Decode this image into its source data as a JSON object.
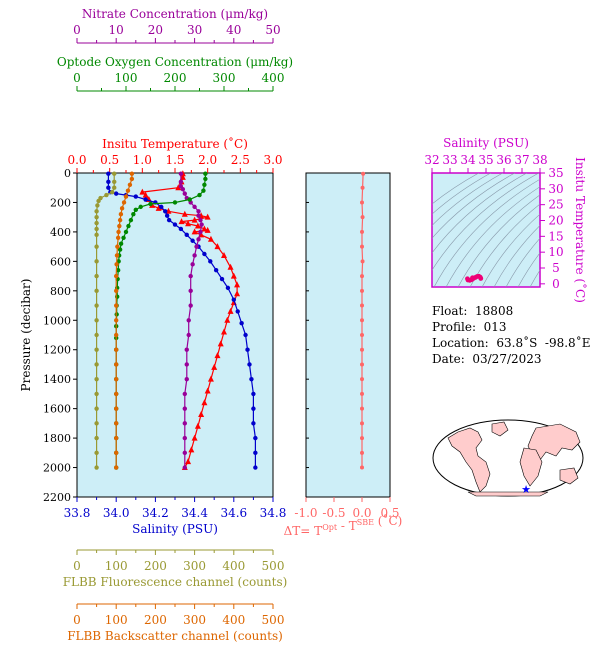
{
  "info": {
    "float": "Float:  18808",
    "profile": "Profile:  013",
    "location": "Location:  63.8˚S  -98.8˚E",
    "date": "Date:  03/27/2023"
  },
  "colors": {
    "background": "#cdeef7",
    "temperature": "#ff0000",
    "salinity": "#0000cc",
    "nitrate": "#990099",
    "oxygen": "#008800",
    "fluorescence": "#999933",
    "backscatter": "#dd6600",
    "delta_t": "#ff6666",
    "ts_points": "#ee0077",
    "ts_axis": "#cc00cc",
    "map_land": "#ffcccc",
    "marker": "#0000ff"
  },
  "chart_data": [
    {
      "type": "line",
      "name": "profiles",
      "ylabel": "Pressure (decibar)",
      "ylim": [
        2200,
        0
      ],
      "yticks": [
        0,
        200,
        400,
        600,
        800,
        1000,
        1200,
        1400,
        1600,
        1800,
        2000,
        2200
      ],
      "axes": [
        {
          "key": "temperature",
          "label": "Insitu Temperature (˚C)",
          "position": "top",
          "range": [
            0.0,
            3.0
          ],
          "ticks": [
            "0.0",
            "0.5",
            "1.0",
            "1.5",
            "2.0",
            "2.5",
            "3.0"
          ]
        },
        {
          "key": "salinity",
          "label": "Salinity (PSU)",
          "position": "bottom",
          "range": [
            33.8,
            34.8
          ],
          "ticks": [
            "33.8",
            "34.0",
            "34.2",
            "34.4",
            "34.6",
            "34.8"
          ]
        },
        {
          "key": "nitrate",
          "label": "Nitrate Concentration (μm/kg)",
          "position": "top-3",
          "range": [
            0,
            50
          ],
          "ticks": [
            "0",
            "10",
            "20",
            "30",
            "40",
            "50"
          ]
        },
        {
          "key": "oxygen",
          "label": "Optode Oxygen Concentration (μm/kg)",
          "position": "top-2",
          "range": [
            0,
            400
          ],
          "ticks": [
            "0",
            "100",
            "200",
            "300",
            "400"
          ]
        },
        {
          "key": "fluorescence",
          "label": "FLBB Fluorescence channel (counts)",
          "position": "bottom-2",
          "range": [
            0,
            500
          ],
          "ticks": [
            "0",
            "100",
            "200",
            "300",
            "400",
            "500"
          ]
        },
        {
          "key": "backscatter",
          "label": "FLBB Backscatter channel (counts)",
          "position": "bottom-3",
          "range": [
            0,
            500
          ],
          "ticks": [
            "0",
            "100",
            "200",
            "300",
            "400",
            "500"
          ]
        }
      ],
      "series": [
        {
          "key": "temperature",
          "marker": "triangle",
          "points": [
            [
              1.62,
              5
            ],
            [
              1.62,
              30
            ],
            [
              1.6,
              60
            ],
            [
              1.55,
              100
            ],
            [
              1.0,
              130
            ],
            [
              1.05,
              150
            ],
            [
              1.1,
              180
            ],
            [
              1.15,
              220
            ],
            [
              1.25,
              240
            ],
            [
              1.4,
              260
            ],
            [
              1.65,
              280
            ],
            [
              1.9,
              290
            ],
            [
              2.0,
              300
            ],
            [
              1.8,
              320
            ],
            [
              1.6,
              330
            ],
            [
              1.7,
              345
            ],
            [
              1.85,
              360
            ],
            [
              1.95,
              380
            ],
            [
              2.0,
              390
            ],
            [
              1.8,
              400
            ],
            [
              1.9,
              420
            ],
            [
              2.05,
              450
            ],
            [
              2.15,
              500
            ],
            [
              2.25,
              560
            ],
            [
              2.35,
              640
            ],
            [
              2.4,
              700
            ],
            [
              2.45,
              760
            ],
            [
              2.45,
              820
            ],
            [
              2.4,
              880
            ],
            [
              2.35,
              940
            ],
            [
              2.3,
              1000
            ],
            [
              2.25,
              1080
            ],
            [
              2.2,
              1160
            ],
            [
              2.15,
              1240
            ],
            [
              2.1,
              1320
            ],
            [
              2.05,
              1400
            ],
            [
              2.0,
              1480
            ],
            [
              1.95,
              1560
            ],
            [
              1.9,
              1640
            ],
            [
              1.85,
              1720
            ],
            [
              1.8,
              1800
            ],
            [
              1.75,
              1880
            ],
            [
              1.7,
              1960
            ],
            [
              1.65,
              2000
            ]
          ]
        },
        {
          "key": "salinity",
          "marker": "circle",
          "points": [
            [
              33.96,
              5
            ],
            [
              33.96,
              60
            ],
            [
              33.96,
              100
            ],
            [
              33.97,
              130
            ],
            [
              34.0,
              140
            ],
            [
              34.05,
              150
            ],
            [
              34.1,
              160
            ],
            [
              34.15,
              180
            ],
            [
              34.2,
              200
            ],
            [
              34.23,
              230
            ],
            [
              34.25,
              260
            ],
            [
              34.26,
              290
            ],
            [
              34.27,
              320
            ],
            [
              34.3,
              350
            ],
            [
              34.33,
              380
            ],
            [
              34.36,
              420
            ],
            [
              34.39,
              460
            ],
            [
              34.42,
              500
            ],
            [
              34.45,
              550
            ],
            [
              34.48,
              600
            ],
            [
              34.51,
              660
            ],
            [
              34.54,
              720
            ],
            [
              34.57,
              780
            ],
            [
              34.6,
              860
            ],
            [
              34.62,
              940
            ],
            [
              34.64,
              1020
            ],
            [
              34.66,
              1100
            ],
            [
              34.67,
              1200
            ],
            [
              34.68,
              1300
            ],
            [
              34.69,
              1400
            ],
            [
              34.7,
              1500
            ],
            [
              34.7,
              1600
            ],
            [
              34.7,
              1700
            ],
            [
              34.71,
              1800
            ],
            [
              34.71,
              1900
            ],
            [
              34.71,
              2000
            ]
          ]
        },
        {
          "key": "nitrate",
          "marker": "circle",
          "points": [
            [
              26.5,
              5
            ],
            [
              26.5,
              60
            ],
            [
              26.5,
              90
            ],
            [
              27.0,
              110
            ],
            [
              27.5,
              140
            ],
            [
              28,
              170
            ],
            [
              29,
              200
            ],
            [
              30,
              230
            ],
            [
              31,
              260
            ],
            [
              31,
              290
            ],
            [
              31.5,
              320
            ],
            [
              31.8,
              350
            ],
            [
              31.5,
              400
            ],
            [
              31,
              450
            ],
            [
              30.5,
              500
            ],
            [
              30,
              560
            ],
            [
              29.5,
              620
            ],
            [
              29,
              700
            ],
            [
              29,
              800
            ],
            [
              29,
              900
            ],
            [
              28.5,
              1000
            ],
            [
              28.5,
              1100
            ],
            [
              28,
              1200
            ],
            [
              28,
              1300
            ],
            [
              28,
              1400
            ],
            [
              27.5,
              1500
            ],
            [
              27.5,
              1600
            ],
            [
              27.5,
              1700
            ],
            [
              27.5,
              1800
            ],
            [
              27.5,
              1900
            ],
            [
              27.5,
              2000
            ]
          ]
        },
        {
          "key": "oxygen",
          "marker": "circle",
          "points": [
            [
              262,
              5
            ],
            [
              262,
              40
            ],
            [
              260,
              80
            ],
            [
              258,
              120
            ],
            [
              250,
              150
            ],
            [
              230,
              180
            ],
            [
              200,
              200
            ],
            [
              150,
              210
            ],
            [
              130,
              230
            ],
            [
              120,
              250
            ],
            [
              115,
              280
            ],
            [
              110,
              320
            ],
            [
              105,
              360
            ],
            [
              100,
              400
            ],
            [
              95,
              440
            ],
            [
              90,
              480
            ],
            [
              88,
              520
            ],
            [
              86,
              560
            ],
            [
              85,
              600
            ],
            [
              84,
              660
            ],
            [
              83,
              720
            ],
            [
              82,
              780
            ],
            [
              82,
              840
            ],
            [
              81,
              900
            ],
            [
              81,
              960
            ],
            [
              80,
              1040
            ],
            [
              80,
              1120
            ],
            [
              80,
              1200
            ],
            [
              80,
              1300
            ],
            [
              80,
              1400
            ],
            [
              80,
              1500
            ],
            [
              80,
              1600
            ],
            [
              80,
              1700
            ],
            [
              80,
              1800
            ],
            [
              80,
              1900
            ],
            [
              80,
              2000
            ]
          ]
        },
        {
          "key": "fluorescence",
          "marker": "circle",
          "points": [
            [
              95,
              5
            ],
            [
              95,
              60
            ],
            [
              95,
              100
            ],
            [
              90,
              130
            ],
            [
              75,
              150
            ],
            [
              60,
              170
            ],
            [
              55,
              190
            ],
            [
              52,
              220
            ],
            [
              50,
              260
            ],
            [
              50,
              300
            ],
            [
              50,
              340
            ],
            [
              50,
              380
            ],
            [
              50,
              420
            ],
            [
              50,
              500
            ],
            [
              50,
              600
            ],
            [
              50,
              700
            ],
            [
              50,
              800
            ],
            [
              50,
              900
            ],
            [
              50,
              1000
            ],
            [
              50,
              1100
            ],
            [
              50,
              1200
            ],
            [
              50,
              1300
            ],
            [
              50,
              1400
            ],
            [
              50,
              1500
            ],
            [
              50,
              1600
            ],
            [
              50,
              1700
            ],
            [
              50,
              1800
            ],
            [
              50,
              1900
            ],
            [
              50,
              2000
            ]
          ]
        },
        {
          "key": "backscatter",
          "marker": "circle",
          "points": [
            [
              140,
              5
            ],
            [
              140,
              40
            ],
            [
              135,
              80
            ],
            [
              130,
              120
            ],
            [
              125,
              160
            ],
            [
              120,
              200
            ],
            [
              115,
              240
            ],
            [
              112,
              280
            ],
            [
              110,
              320
            ],
            [
              108,
              360
            ],
            [
              106,
              400
            ],
            [
              105,
              440
            ],
            [
              103,
              500
            ],
            [
              102,
              560
            ],
            [
              101,
              620
            ],
            [
              100,
              700
            ],
            [
              100,
              800
            ],
            [
              100,
              900
            ],
            [
              100,
              1000
            ],
            [
              100,
              1100
            ],
            [
              100,
              1200
            ],
            [
              100,
              1300
            ],
            [
              100,
              1400
            ],
            [
              100,
              1500
            ],
            [
              100,
              1600
            ],
            [
              100,
              1700
            ],
            [
              100,
              1800
            ],
            [
              100,
              1900
            ],
            [
              100,
              2000
            ]
          ]
        }
      ]
    },
    {
      "type": "line",
      "name": "delta-t",
      "xlabel": "ΔT= T",
      "xlabel_sup1": "Opt",
      "xlabel_mid": " - T",
      "xlabel_sup2": "SBE",
      "xlabel_end": " (˚C)",
      "xlim": [
        -1.0,
        0.5
      ],
      "xticks": [
        "-1.0",
        "-0.5",
        "0.0",
        "0.5"
      ],
      "ylim": [
        2200,
        0
      ],
      "points": [
        [
          0.02,
          5
        ],
        [
          0.01,
          100
        ],
        [
          0.0,
          200
        ],
        [
          0.01,
          300
        ],
        [
          0.0,
          400
        ],
        [
          0.0,
          500
        ],
        [
          0.01,
          600
        ],
        [
          0.0,
          700
        ],
        [
          0.0,
          800
        ],
        [
          0.0,
          900
        ],
        [
          0.0,
          1000
        ],
        [
          0.0,
          1100
        ],
        [
          0.0,
          1200
        ],
        [
          0.0,
          1300
        ],
        [
          0.0,
          1400
        ],
        [
          0.0,
          1500
        ],
        [
          0.0,
          1600
        ],
        [
          0.0,
          1700
        ],
        [
          0.0,
          1800
        ],
        [
          0.0,
          1900
        ],
        [
          0.0,
          2000
        ]
      ]
    },
    {
      "type": "scatter",
      "name": "t-s",
      "xlabel": "Salinity (PSU)",
      "ylabel": "Insitu Temperature (˚C)",
      "xlim": [
        32,
        38
      ],
      "ylim": [
        -1,
        35
      ],
      "xticks": [
        "32",
        "33",
        "34",
        "35",
        "36",
        "37",
        "38"
      ],
      "yticks": [
        "0",
        "5",
        "10",
        "15",
        "20",
        "25",
        "30",
        "35"
      ],
      "points": [
        [
          33.97,
          1.6
        ],
        [
          34.0,
          1.2
        ],
        [
          34.1,
          1.1
        ],
        [
          34.2,
          1.3
        ],
        [
          34.25,
          1.9
        ],
        [
          34.3,
          1.7
        ],
        [
          34.4,
          2.0
        ],
        [
          34.5,
          2.3
        ],
        [
          34.6,
          2.4
        ],
        [
          34.68,
          2.1
        ],
        [
          34.71,
          1.7
        ]
      ]
    }
  ]
}
